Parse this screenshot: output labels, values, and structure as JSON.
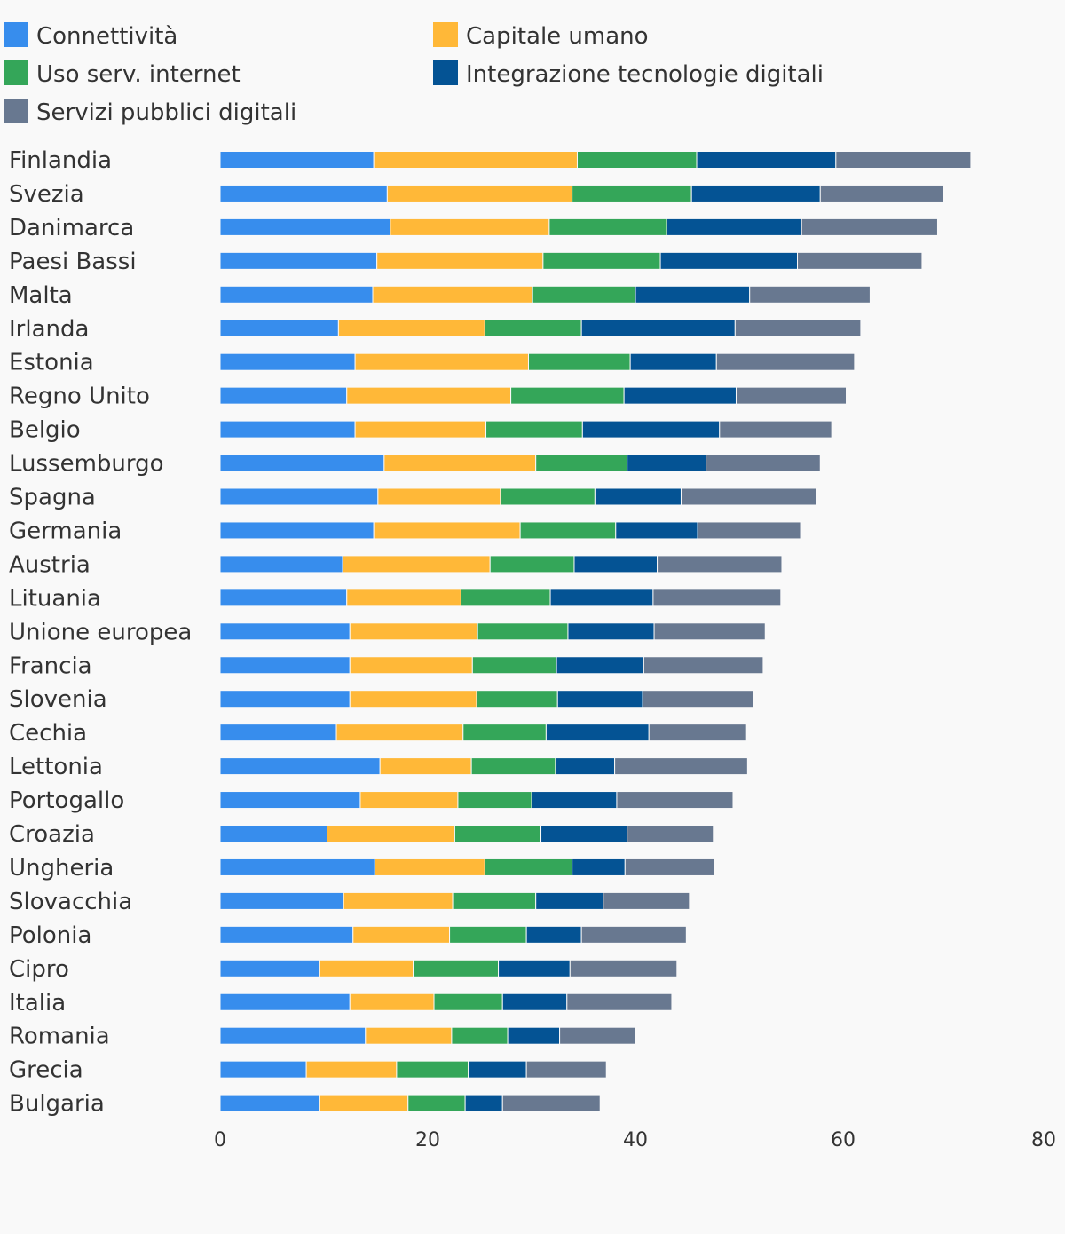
{
  "chart_data": {
    "type": "bar",
    "orientation": "horizontal",
    "stacked": true,
    "title": "",
    "xlabel": "",
    "ylabel": "",
    "xlim": [
      0,
      80
    ],
    "xticks": [
      0,
      20,
      40,
      60,
      80
    ],
    "grid": false,
    "legend_position": "top",
    "categories": [
      "Finlandia",
      "Svezia",
      "Danimarca",
      "Paesi Bassi",
      "Malta",
      "Irlanda",
      "Estonia",
      "Regno Unito",
      "Belgio",
      "Lussemburgo",
      "Spagna",
      "Germania",
      "Austria",
      "Lituania",
      "Unione europea",
      "Francia",
      "Slovenia",
      "Cechia",
      "Lettonia",
      "Portogallo",
      "Croazia",
      "Ungheria",
      "Slovacchia",
      "Polonia",
      "Cipro",
      "Italia",
      "Romania",
      "Grecia",
      "Bulgaria"
    ],
    "series": [
      {
        "name": "Connettività",
        "color": "#378ded",
        "values": [
          14.8,
          16.1,
          16.4,
          15.1,
          14.7,
          11.4,
          13.0,
          12.2,
          13.0,
          15.8,
          15.2,
          14.8,
          11.8,
          12.2,
          12.5,
          12.5,
          12.5,
          11.2,
          15.4,
          13.5,
          10.3,
          14.9,
          11.9,
          12.8,
          9.6,
          12.5,
          14.0,
          8.3,
          9.6
        ]
      },
      {
        "name": "Capitale umano",
        "color": "#ffb838",
        "values": [
          19.6,
          17.8,
          15.3,
          16.0,
          15.4,
          14.1,
          16.7,
          15.8,
          12.6,
          14.6,
          11.8,
          14.1,
          14.2,
          11.0,
          12.3,
          11.8,
          12.2,
          12.2,
          8.8,
          9.4,
          12.3,
          10.6,
          10.5,
          9.3,
          9.0,
          8.1,
          8.3,
          8.7,
          8.5
        ]
      },
      {
        "name": "Uso serv. internet",
        "color": "#34a659",
        "values": [
          11.5,
          11.5,
          11.3,
          11.3,
          9.9,
          9.3,
          9.8,
          10.9,
          9.3,
          8.8,
          9.1,
          9.2,
          8.1,
          8.6,
          8.7,
          8.1,
          7.8,
          8.0,
          8.1,
          7.1,
          8.3,
          8.4,
          8.0,
          7.4,
          8.2,
          6.6,
          5.4,
          6.9,
          5.5
        ]
      },
      {
        "name": "Integrazione tecnologie digitali",
        "color": "#045394",
        "values": [
          13.4,
          12.4,
          13.0,
          13.2,
          11.0,
          14.8,
          8.3,
          10.8,
          13.2,
          7.6,
          8.3,
          7.9,
          8.0,
          9.9,
          8.3,
          8.4,
          8.2,
          9.9,
          5.7,
          8.2,
          8.3,
          5.1,
          6.5,
          5.3,
          6.9,
          6.2,
          5.0,
          5.6,
          3.6
        ]
      },
      {
        "name": "Servizi pubblici digitali",
        "color": "#687890",
        "values": [
          13.0,
          11.9,
          13.1,
          12.0,
          11.6,
          12.1,
          13.3,
          10.6,
          10.8,
          11.0,
          13.0,
          9.9,
          12.0,
          12.3,
          10.7,
          11.5,
          10.7,
          9.4,
          12.8,
          11.2,
          8.3,
          8.6,
          8.3,
          10.1,
          10.3,
          10.1,
          7.3,
          7.7,
          9.4
        ]
      }
    ]
  }
}
